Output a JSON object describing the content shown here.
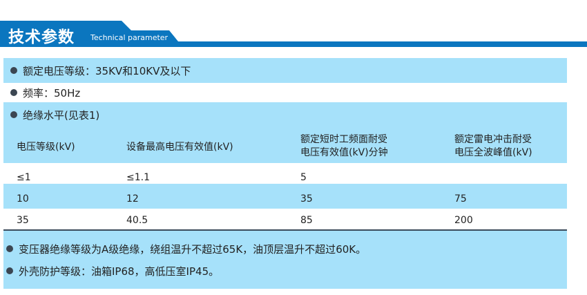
{
  "header": {
    "title": "技术参数",
    "subtitle": "Technical parameter"
  },
  "bullets_top": [
    "额定电压等级：35KV和10KV及以下",
    "频率：50Hz",
    "绝缘水平(见表1)"
  ],
  "table": {
    "headers": [
      "电压等级(kV)",
      "设备最高电压有效值(kV)",
      "额定短时工频面耐受\n电压有效值(kV)分钟",
      "额定雷电冲击耐受\n电压全波峰值(kV)"
    ],
    "rows": [
      [
        "≤1",
        "≤1.1",
        "5",
        ""
      ],
      [
        "10",
        "12",
        "35",
        "75"
      ],
      [
        "35",
        "40.5",
        "85",
        "200"
      ]
    ]
  },
  "bullets_bottom": [
    "变压器绝缘等级为A级绝缘，绕组温升不超过65K，油顶层温升不超过60K。",
    "外壳防护等级：油箱IP68，高低压室IP45。"
  ],
  "colors": {
    "header_blue": "#0b76bf",
    "row_blue": "#a6e1fa"
  }
}
